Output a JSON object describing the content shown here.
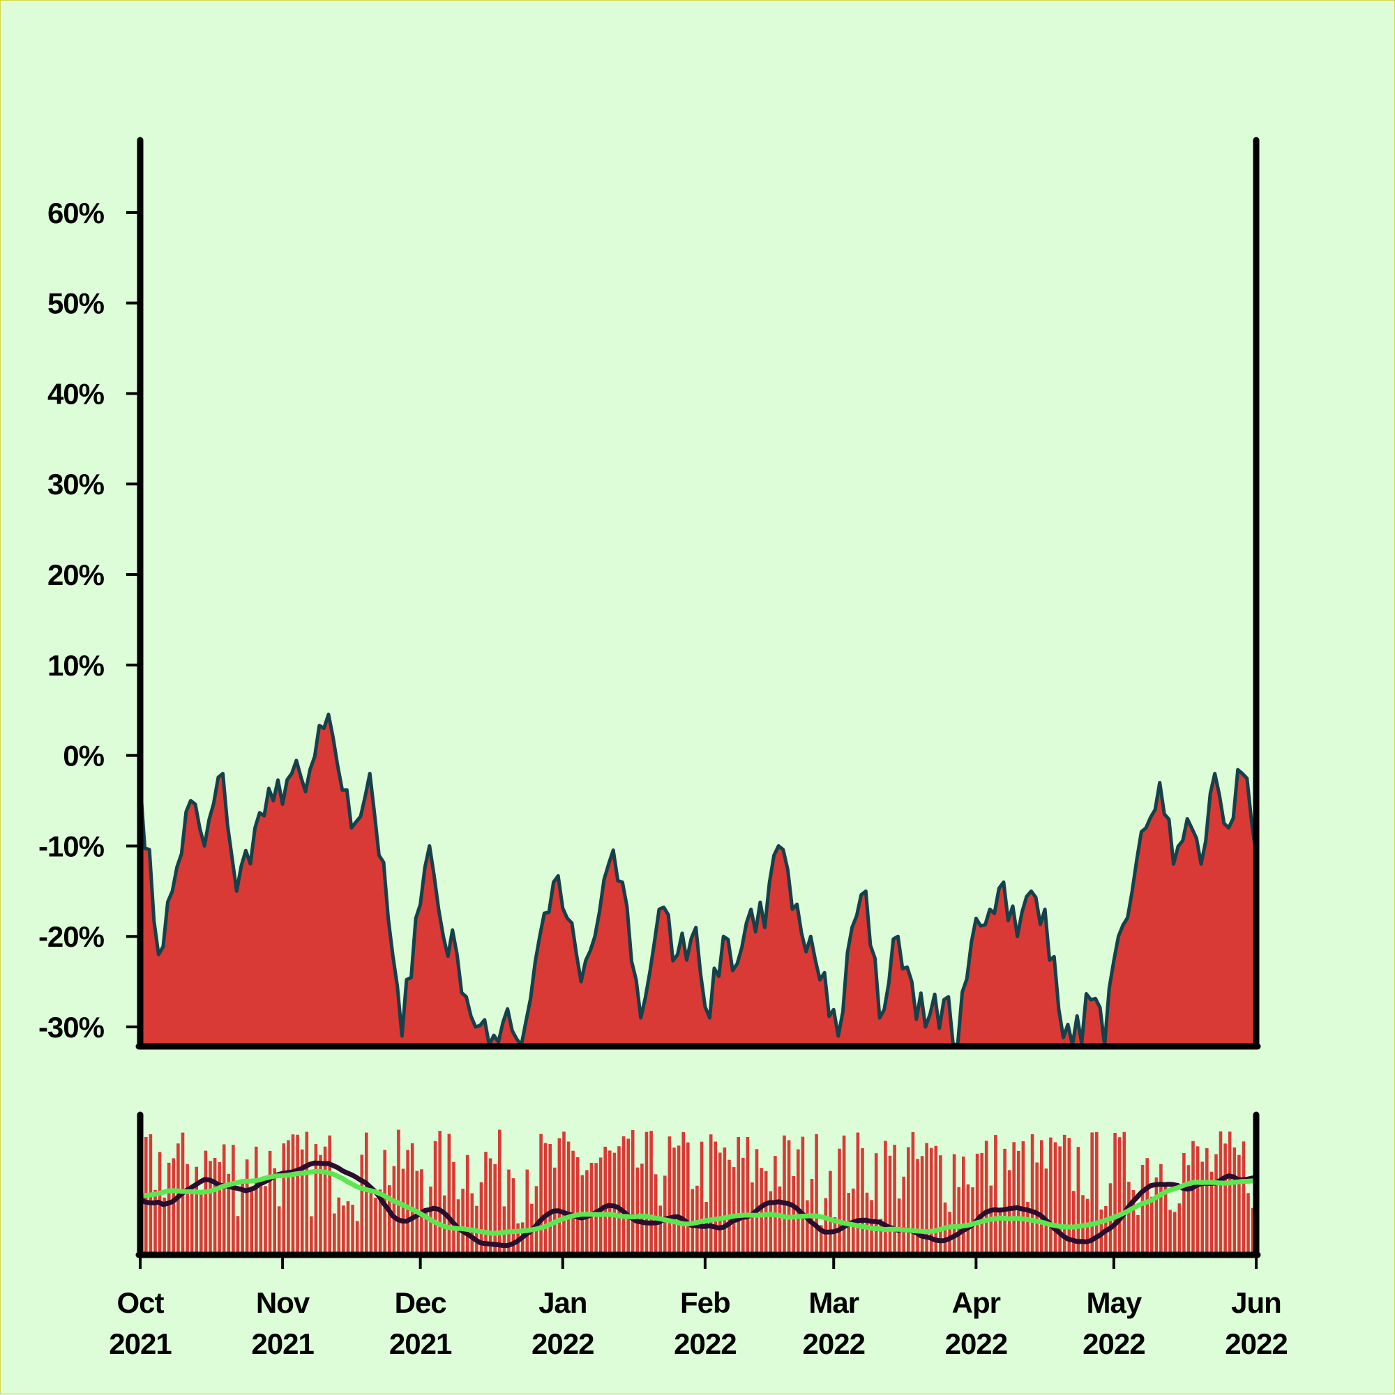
{
  "colors": {
    "background": "#dcfdd8",
    "area_fill": "#d93a35",
    "price_line": "#16404a",
    "volume_bar": "#d93a35",
    "ma_short": "#2b0d2e",
    "ma_long": "#5de650",
    "axis": "#000000"
  },
  "chart_data": [
    {
      "type": "area",
      "y_tick_labels": [
        "60%",
        "50%",
        "40%",
        "30%",
        "20%",
        "10%",
        "0%",
        "-10%",
        "-20%",
        "-30%"
      ],
      "y_ticks": [
        60,
        50,
        40,
        30,
        20,
        10,
        0,
        -10,
        -20,
        -30
      ],
      "ylim": [
        -32,
        68
      ],
      "xlim": [
        "2021-10-01",
        "2022-06-01"
      ],
      "grid": false,
      "series": [
        {
          "x": [
            "2021-10-01",
            "2021-10-05",
            "2021-10-08",
            "2021-10-12",
            "2021-10-15",
            "2021-10-19",
            "2021-10-22",
            "2021-10-26",
            "2021-10-30",
            "2021-11-03",
            "2021-11-06",
            "2021-11-10",
            "2021-11-12",
            "2021-11-16",
            "2021-11-20",
            "2021-11-24",
            "2021-11-27",
            "2021-11-30",
            "2021-12-03",
            "2021-12-06",
            "2021-12-09",
            "2021-12-13",
            "2021-12-16",
            "2021-12-20",
            "2021-12-23",
            "2021-12-27",
            "2021-12-30",
            "2022-01-02",
            "2022-01-05",
            "2022-01-08",
            "2022-01-11",
            "2022-01-14",
            "2022-01-18",
            "2022-01-22",
            "2022-01-26",
            "2022-01-30",
            "2022-02-02",
            "2022-02-05",
            "2022-02-08",
            "2022-02-11",
            "2022-02-14",
            "2022-02-17",
            "2022-02-20",
            "2022-02-24",
            "2022-02-27",
            "2022-03-02",
            "2022-03-05",
            "2022-03-08",
            "2022-03-11",
            "2022-03-15",
            "2022-03-18",
            "2022-03-21",
            "2022-03-25",
            "2022-03-28",
            "2022-04-01",
            "2022-04-04",
            "2022-04-07",
            "2022-04-10",
            "2022-04-13",
            "2022-04-16",
            "2022-04-19",
            "2022-04-22",
            "2022-04-26",
            "2022-04-29",
            "2022-05-02",
            "2022-05-05",
            "2022-05-08",
            "2022-05-11",
            "2022-05-14",
            "2022-05-17",
            "2022-05-20",
            "2022-05-23",
            "2022-05-26",
            "2022-05-29",
            "2022-06-01"
          ],
          "values": [
            -3,
            -22,
            -15,
            -5,
            -10,
            -2,
            -15,
            -8,
            -5,
            -2,
            -4,
            3,
            2,
            -8,
            -2,
            -18,
            -31,
            -18,
            -10,
            -20,
            -22,
            -30,
            -32,
            -28,
            -32,
            -20,
            -14,
            -18,
            -25,
            -20,
            -12,
            -14,
            -29,
            -17,
            -22,
            -19,
            -29,
            -20,
            -23,
            -17,
            -19,
            -10,
            -17,
            -20,
            -24,
            -31,
            -19,
            -15,
            -29,
            -20,
            -25,
            -30,
            -27,
            -32,
            -18,
            -17,
            -14,
            -20,
            -15,
            -17,
            -28,
            -32,
            -27,
            -32,
            -20,
            -15,
            -8,
            -3,
            -12,
            -7,
            -12,
            -2,
            -8,
            -2,
            -11
          ]
        }
      ]
    },
    {
      "type": "bar",
      "volume_seed": 7,
      "series": [
        {
          "role": "volume"
        },
        {
          "role": "moving-average-short"
        },
        {
          "role": "moving-average-long"
        }
      ]
    }
  ],
  "x_tick_labels": [
    {
      "month": "Oct",
      "year": "2021",
      "date": "2021-10-01"
    },
    {
      "month": "Nov",
      "year": "2021",
      "date": "2021-11-01"
    },
    {
      "month": "Dec",
      "year": "2021",
      "date": "2021-12-01"
    },
    {
      "month": "Jan",
      "year": "2022",
      "date": "2022-01-01"
    },
    {
      "month": "Feb",
      "year": "2022",
      "date": "2022-02-01"
    },
    {
      "month": "Mar",
      "year": "2022",
      "date": "2022-03-01"
    },
    {
      "month": "Apr",
      "year": "2022",
      "date": "2022-04-01"
    },
    {
      "month": "May",
      "year": "2022",
      "date": "2022-05-01"
    },
    {
      "month": "Jun",
      "year": "2022",
      "date": "2022-06-01"
    }
  ]
}
